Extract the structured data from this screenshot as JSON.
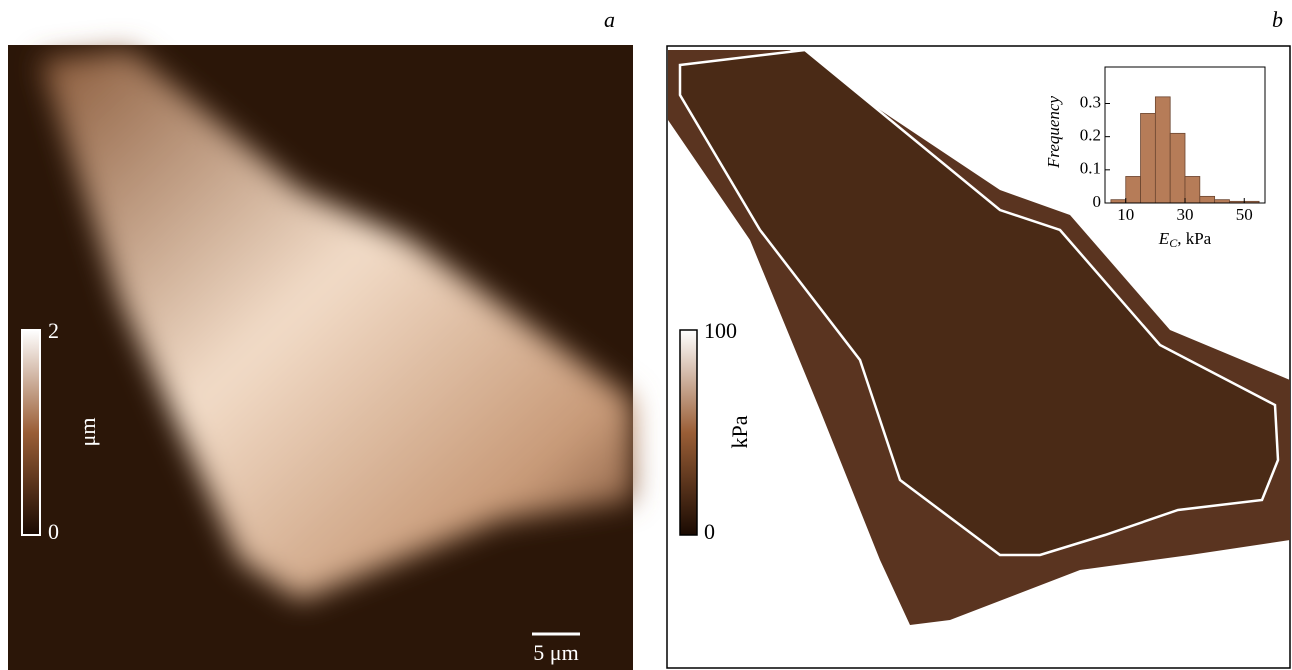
{
  "panels": [
    {
      "label": "a",
      "colorbar": {
        "max": "2",
        "min": "0",
        "unit": "μm"
      },
      "scale_bar": "5 μm"
    },
    {
      "label": "b",
      "colorbar": {
        "max": "100",
        "min": "0",
        "unit": "kPa"
      }
    }
  ],
  "chart_data": {
    "type": "histogram",
    "ylabel": "Frequency",
    "xlabel": {
      "symbol": "E",
      "subscript": "C",
      "unit": ", kPa"
    },
    "bins": [
      5,
      10,
      15,
      20,
      25,
      30,
      35,
      40,
      45,
      50,
      55
    ],
    "values": [
      0.01,
      0.08,
      0.27,
      0.32,
      0.21,
      0.08,
      0.02,
      0.01,
      0.005,
      0.005
    ],
    "color": "#b67c58",
    "xlim": [
      3,
      57
    ],
    "ylim": [
      0,
      0.41
    ],
    "xticks": [
      10,
      30,
      50
    ],
    "yticks": [
      0,
      0.1,
      0.2,
      0.3
    ]
  }
}
